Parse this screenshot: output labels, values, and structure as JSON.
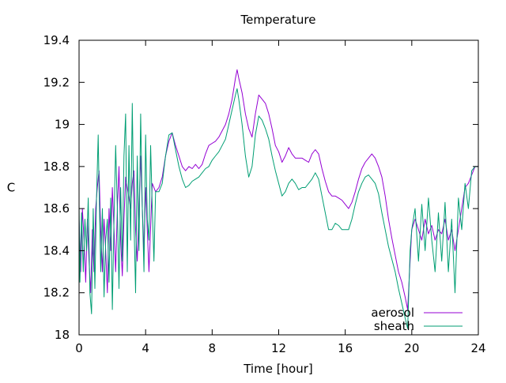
{
  "chart_data": {
    "type": "line",
    "title": "Temperature",
    "xlabel": "Time [hour]",
    "ylabel": "C",
    "xlim": [
      0,
      24
    ],
    "ylim": [
      18,
      19.4
    ],
    "xticks": [
      0,
      4,
      8,
      12,
      16,
      20,
      24
    ],
    "yticks": [
      18,
      18.2,
      18.4,
      18.6,
      18.8,
      19,
      19.2,
      19.4
    ],
    "ytick_labels": [
      "18",
      "18.2",
      "18.4",
      "18.6",
      "18.8",
      "19",
      "19.2",
      "19.4"
    ],
    "grid": false,
    "legend_position": "bottom-right",
    "series": [
      {
        "name": "aerosol",
        "color": "#9400d3",
        "points": [
          [
            0.0,
            18.55
          ],
          [
            0.1,
            18.3
          ],
          [
            0.2,
            18.6
          ],
          [
            0.3,
            18.45
          ],
          [
            0.4,
            18.25
          ],
          [
            0.5,
            18.55
          ],
          [
            0.6,
            18.35
          ],
          [
            0.7,
            18.2
          ],
          [
            0.8,
            18.5
          ],
          [
            0.9,
            18.3
          ],
          [
            1.0,
            18.6
          ],
          [
            1.1,
            18.7
          ],
          [
            1.2,
            18.78
          ],
          [
            1.3,
            18.5
          ],
          [
            1.4,
            18.3
          ],
          [
            1.5,
            18.55
          ],
          [
            1.6,
            18.4
          ],
          [
            1.7,
            18.2
          ],
          [
            1.8,
            18.6
          ],
          [
            1.9,
            18.4
          ],
          [
            2.0,
            18.7
          ],
          [
            2.1,
            18.5
          ],
          [
            2.2,
            18.3
          ],
          [
            2.3,
            18.6
          ],
          [
            2.4,
            18.8
          ],
          [
            2.5,
            18.45
          ],
          [
            2.6,
            18.28
          ],
          [
            2.7,
            18.55
          ],
          [
            2.8,
            18.75
          ],
          [
            2.9,
            18.7
          ],
          [
            3.0,
            18.65
          ],
          [
            3.1,
            18.6
          ],
          [
            3.2,
            18.72
          ],
          [
            3.3,
            18.78
          ],
          [
            3.4,
            18.5
          ],
          [
            3.5,
            18.35
          ],
          [
            3.6,
            18.6
          ],
          [
            3.7,
            18.85
          ],
          [
            3.8,
            18.6
          ],
          [
            3.9,
            18.4
          ],
          [
            4.0,
            18.7
          ],
          [
            4.1,
            18.5
          ],
          [
            4.2,
            18.3
          ],
          [
            4.4,
            18.72
          ],
          [
            4.6,
            18.68
          ],
          [
            4.8,
            18.7
          ],
          [
            5.0,
            18.75
          ],
          [
            5.2,
            18.85
          ],
          [
            5.4,
            18.92
          ],
          [
            5.6,
            18.96
          ],
          [
            5.8,
            18.9
          ],
          [
            6.0,
            18.85
          ],
          [
            6.2,
            18.8
          ],
          [
            6.4,
            18.78
          ],
          [
            6.6,
            18.8
          ],
          [
            6.8,
            18.79
          ],
          [
            7.0,
            18.81
          ],
          [
            7.2,
            18.79
          ],
          [
            7.4,
            18.81
          ],
          [
            7.6,
            18.86
          ],
          [
            7.8,
            18.9
          ],
          [
            8.0,
            18.91
          ],
          [
            8.2,
            18.92
          ],
          [
            8.4,
            18.94
          ],
          [
            8.6,
            18.97
          ],
          [
            8.8,
            19.0
          ],
          [
            9.0,
            19.05
          ],
          [
            9.2,
            19.12
          ],
          [
            9.4,
            19.22
          ],
          [
            9.5,
            19.26
          ],
          [
            9.6,
            19.22
          ],
          [
            9.8,
            19.15
          ],
          [
            10.0,
            19.05
          ],
          [
            10.2,
            18.98
          ],
          [
            10.4,
            18.94
          ],
          [
            10.6,
            19.05
          ],
          [
            10.8,
            19.14
          ],
          [
            11.0,
            19.12
          ],
          [
            11.2,
            19.1
          ],
          [
            11.4,
            19.05
          ],
          [
            11.6,
            18.98
          ],
          [
            11.8,
            18.9
          ],
          [
            12.0,
            18.87
          ],
          [
            12.2,
            18.82
          ],
          [
            12.4,
            18.85
          ],
          [
            12.6,
            18.89
          ],
          [
            12.8,
            18.86
          ],
          [
            13.0,
            18.84
          ],
          [
            13.2,
            18.84
          ],
          [
            13.4,
            18.84
          ],
          [
            13.6,
            18.83
          ],
          [
            13.8,
            18.82
          ],
          [
            14.0,
            18.86
          ],
          [
            14.2,
            18.88
          ],
          [
            14.4,
            18.86
          ],
          [
            14.6,
            18.79
          ],
          [
            14.8,
            18.73
          ],
          [
            15.0,
            18.68
          ],
          [
            15.2,
            18.66
          ],
          [
            15.4,
            18.66
          ],
          [
            15.6,
            18.65
          ],
          [
            15.8,
            18.64
          ],
          [
            16.0,
            18.62
          ],
          [
            16.2,
            18.6
          ],
          [
            16.4,
            18.63
          ],
          [
            16.6,
            18.68
          ],
          [
            16.8,
            18.74
          ],
          [
            17.0,
            18.79
          ],
          [
            17.2,
            18.82
          ],
          [
            17.4,
            18.84
          ],
          [
            17.6,
            18.86
          ],
          [
            17.8,
            18.84
          ],
          [
            18.0,
            18.8
          ],
          [
            18.2,
            18.75
          ],
          [
            18.4,
            18.66
          ],
          [
            18.6,
            18.55
          ],
          [
            18.8,
            18.46
          ],
          [
            19.0,
            18.38
          ],
          [
            19.2,
            18.3
          ],
          [
            19.4,
            18.25
          ],
          [
            19.6,
            18.18
          ],
          [
            19.75,
            18.12
          ],
          [
            19.9,
            18.35
          ],
          [
            20.0,
            18.5
          ],
          [
            20.2,
            18.55
          ],
          [
            20.4,
            18.5
          ],
          [
            20.6,
            18.45
          ],
          [
            20.8,
            18.55
          ],
          [
            21.0,
            18.48
          ],
          [
            21.2,
            18.52
          ],
          [
            21.4,
            18.45
          ],
          [
            21.6,
            18.5
          ],
          [
            21.8,
            18.48
          ],
          [
            22.0,
            18.55
          ],
          [
            22.2,
            18.45
          ],
          [
            22.4,
            18.5
          ],
          [
            22.6,
            18.4
          ],
          [
            22.8,
            18.5
          ],
          [
            23.0,
            18.6
          ],
          [
            23.2,
            18.7
          ],
          [
            23.4,
            18.72
          ],
          [
            23.6,
            18.76
          ],
          [
            23.8,
            18.8
          ],
          [
            24.0,
            18.8
          ]
        ]
      },
      {
        "name": "sheath",
        "color": "#009e73",
        "points": [
          [
            0.0,
            18.62
          ],
          [
            0.05,
            18.25
          ],
          [
            0.15,
            18.58
          ],
          [
            0.25,
            18.3
          ],
          [
            0.35,
            18.55
          ],
          [
            0.45,
            18.4
          ],
          [
            0.55,
            18.65
          ],
          [
            0.65,
            18.2
          ],
          [
            0.75,
            18.1
          ],
          [
            0.85,
            18.6
          ],
          [
            0.95,
            18.22
          ],
          [
            1.05,
            18.65
          ],
          [
            1.15,
            18.95
          ],
          [
            1.2,
            18.7
          ],
          [
            1.3,
            18.3
          ],
          [
            1.4,
            18.6
          ],
          [
            1.5,
            18.18
          ],
          [
            1.6,
            18.45
          ],
          [
            1.7,
            18.55
          ],
          [
            1.8,
            18.25
          ],
          [
            1.9,
            18.65
          ],
          [
            2.0,
            18.12
          ],
          [
            2.1,
            18.55
          ],
          [
            2.2,
            18.9
          ],
          [
            2.3,
            18.6
          ],
          [
            2.4,
            18.22
          ],
          [
            2.5,
            18.7
          ],
          [
            2.6,
            18.35
          ],
          [
            2.7,
            18.85
          ],
          [
            2.8,
            19.05
          ],
          [
            2.9,
            18.3
          ],
          [
            3.0,
            18.9
          ],
          [
            3.1,
            18.45
          ],
          [
            3.2,
            19.1
          ],
          [
            3.3,
            18.55
          ],
          [
            3.4,
            18.2
          ],
          [
            3.5,
            18.85
          ],
          [
            3.6,
            18.4
          ],
          [
            3.7,
            19.05
          ],
          [
            3.8,
            18.6
          ],
          [
            3.9,
            18.3
          ],
          [
            4.0,
            18.95
          ],
          [
            4.1,
            18.55
          ],
          [
            4.2,
            18.45
          ],
          [
            4.3,
            18.9
          ],
          [
            4.4,
            18.6
          ],
          [
            4.5,
            18.35
          ],
          [
            4.6,
            18.68
          ],
          [
            4.8,
            18.68
          ],
          [
            5.0,
            18.72
          ],
          [
            5.2,
            18.85
          ],
          [
            5.4,
            18.95
          ],
          [
            5.6,
            18.96
          ],
          [
            5.8,
            18.88
          ],
          [
            6.0,
            18.8
          ],
          [
            6.2,
            18.74
          ],
          [
            6.4,
            18.7
          ],
          [
            6.6,
            18.71
          ],
          [
            6.8,
            18.73
          ],
          [
            7.0,
            18.74
          ],
          [
            7.2,
            18.75
          ],
          [
            7.4,
            18.77
          ],
          [
            7.6,
            18.79
          ],
          [
            7.8,
            18.8
          ],
          [
            8.0,
            18.83
          ],
          [
            8.2,
            18.85
          ],
          [
            8.4,
            18.87
          ],
          [
            8.6,
            18.9
          ],
          [
            8.8,
            18.93
          ],
          [
            9.0,
            19.0
          ],
          [
            9.2,
            19.07
          ],
          [
            9.4,
            19.14
          ],
          [
            9.5,
            19.17
          ],
          [
            9.6,
            19.12
          ],
          [
            9.8,
            19.0
          ],
          [
            10.0,
            18.85
          ],
          [
            10.2,
            18.75
          ],
          [
            10.4,
            18.8
          ],
          [
            10.6,
            18.95
          ],
          [
            10.8,
            19.04
          ],
          [
            11.0,
            19.02
          ],
          [
            11.2,
            18.98
          ],
          [
            11.4,
            18.93
          ],
          [
            11.6,
            18.85
          ],
          [
            11.8,
            18.78
          ],
          [
            12.0,
            18.72
          ],
          [
            12.2,
            18.66
          ],
          [
            12.4,
            18.68
          ],
          [
            12.6,
            18.72
          ],
          [
            12.8,
            18.74
          ],
          [
            13.0,
            18.72
          ],
          [
            13.2,
            18.69
          ],
          [
            13.4,
            18.7
          ],
          [
            13.6,
            18.7
          ],
          [
            13.8,
            18.72
          ],
          [
            14.0,
            18.74
          ],
          [
            14.2,
            18.77
          ],
          [
            14.4,
            18.74
          ],
          [
            14.6,
            18.66
          ],
          [
            14.8,
            18.58
          ],
          [
            15.0,
            18.5
          ],
          [
            15.2,
            18.5
          ],
          [
            15.4,
            18.53
          ],
          [
            15.6,
            18.52
          ],
          [
            15.8,
            18.5
          ],
          [
            16.0,
            18.5
          ],
          [
            16.2,
            18.5
          ],
          [
            16.4,
            18.55
          ],
          [
            16.6,
            18.62
          ],
          [
            16.8,
            18.68
          ],
          [
            17.0,
            18.72
          ],
          [
            17.2,
            18.75
          ],
          [
            17.4,
            18.76
          ],
          [
            17.6,
            18.74
          ],
          [
            17.8,
            18.72
          ],
          [
            18.0,
            18.67
          ],
          [
            18.2,
            18.58
          ],
          [
            18.4,
            18.5
          ],
          [
            18.6,
            18.42
          ],
          [
            18.8,
            18.36
          ],
          [
            19.0,
            18.3
          ],
          [
            19.2,
            18.22
          ],
          [
            19.4,
            18.15
          ],
          [
            19.6,
            18.08
          ],
          [
            19.75,
            18.03
          ],
          [
            19.9,
            18.4
          ],
          [
            20.0,
            18.5
          ],
          [
            20.2,
            18.6
          ],
          [
            20.4,
            18.35
          ],
          [
            20.6,
            18.62
          ],
          [
            20.8,
            18.4
          ],
          [
            21.0,
            18.65
          ],
          [
            21.2,
            18.45
          ],
          [
            21.4,
            18.3
          ],
          [
            21.6,
            18.58
          ],
          [
            21.8,
            18.35
          ],
          [
            22.0,
            18.63
          ],
          [
            22.2,
            18.3
          ],
          [
            22.4,
            18.55
          ],
          [
            22.6,
            18.2
          ],
          [
            22.8,
            18.65
          ],
          [
            23.0,
            18.5
          ],
          [
            23.2,
            18.72
          ],
          [
            23.4,
            18.6
          ],
          [
            23.6,
            18.78
          ],
          [
            23.8,
            18.8
          ],
          [
            24.0,
            18.8
          ]
        ]
      }
    ]
  }
}
